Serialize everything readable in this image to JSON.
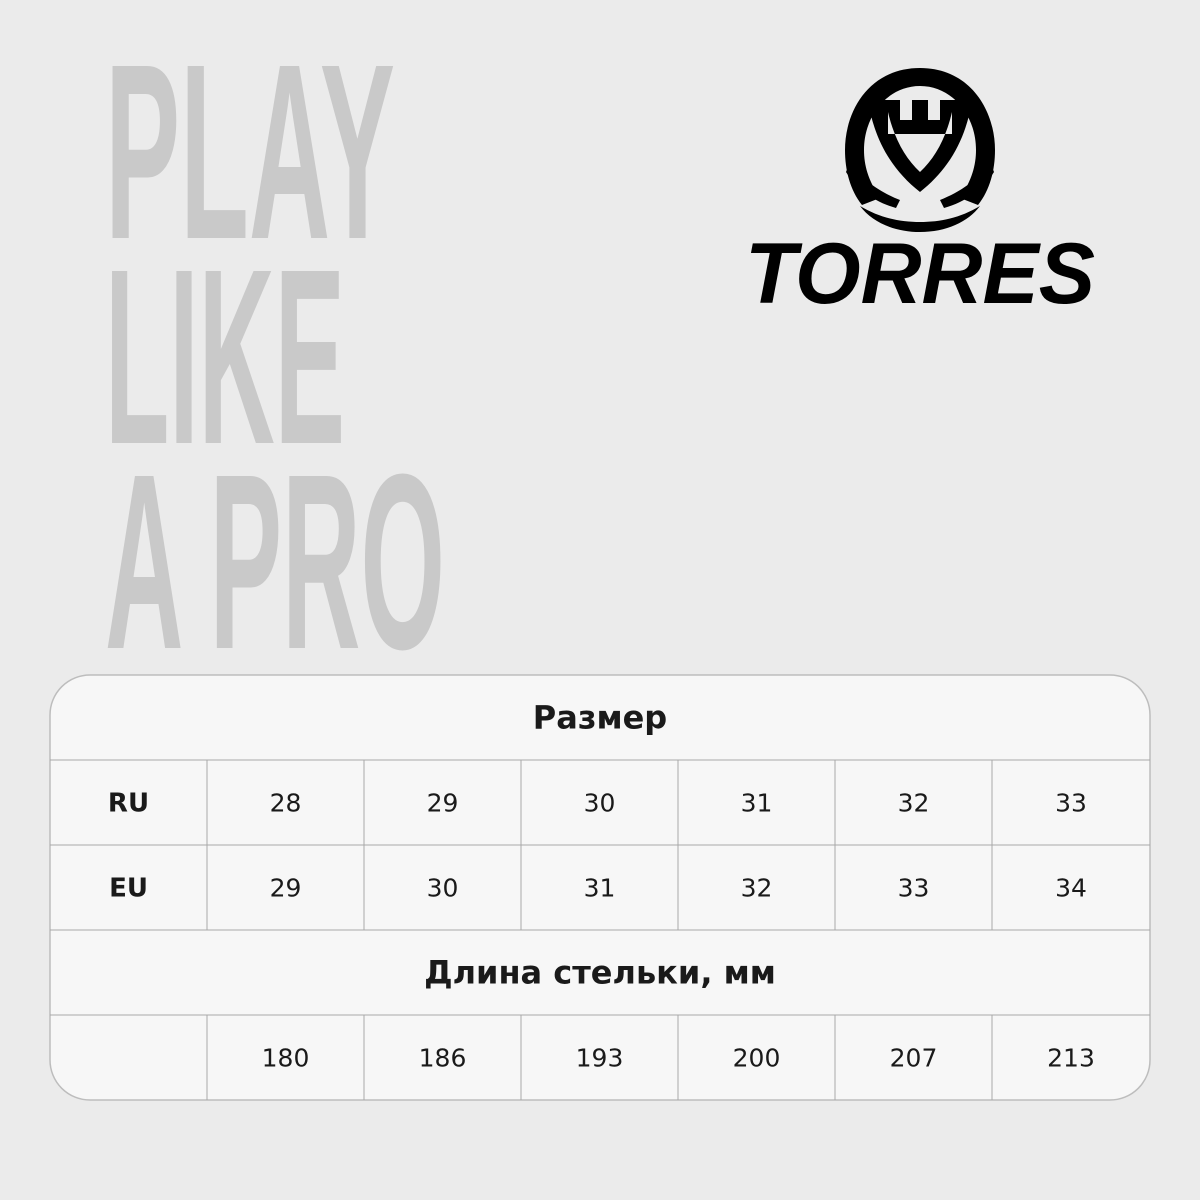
{
  "slogan": {
    "lines": [
      "PLAY",
      "LIKE",
      "A PRO"
    ]
  },
  "brand": {
    "name": "TORRES"
  },
  "table": {
    "title": "Размер",
    "rows": [
      {
        "label": "RU",
        "values": [
          28,
          29,
          30,
          31,
          32,
          33
        ]
      },
      {
        "label": "EU",
        "values": [
          29,
          30,
          31,
          32,
          33,
          34
        ]
      }
    ],
    "section": "Длина стельки, мм",
    "insole": [
      180,
      186,
      193,
      200,
      207,
      213
    ]
  }
}
